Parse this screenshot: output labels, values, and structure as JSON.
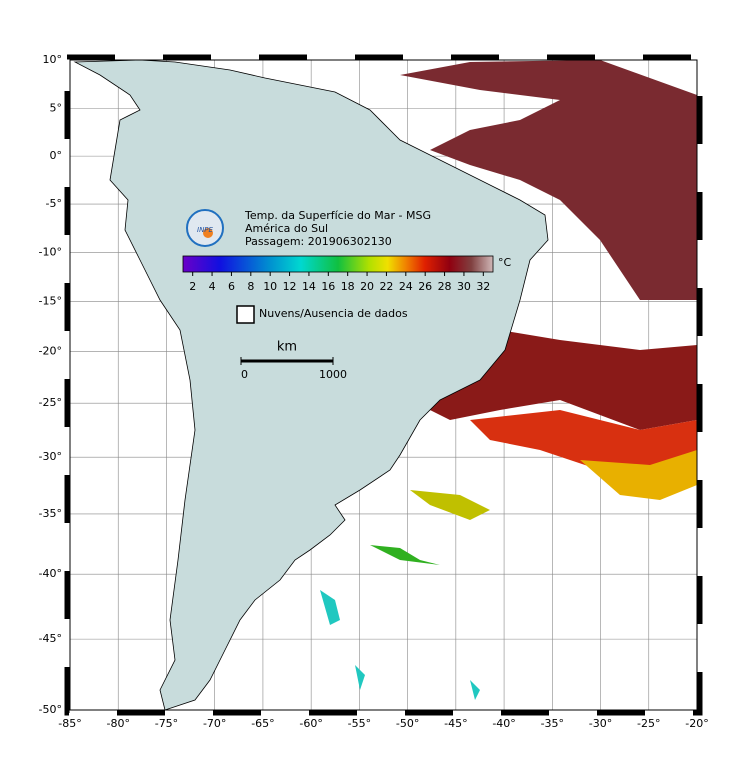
{
  "map": {
    "title_lines": [
      "Temp. da Superfície do Mar - MSG",
      "América do Sul",
      "Passagem: 201906302130"
    ],
    "logo": "INPE",
    "xlim": [
      -85,
      -20
    ],
    "ylim": [
      -50,
      10
    ],
    "xticks": [
      {
        "value": -85,
        "label": "-85°"
      },
      {
        "value": -80,
        "label": "-80°"
      },
      {
        "value": -75,
        "label": "-75°"
      },
      {
        "value": -70,
        "label": "-70°"
      },
      {
        "value": -65,
        "label": "-65°"
      },
      {
        "value": -60,
        "label": "-60°"
      },
      {
        "value": -55,
        "label": "-55°"
      },
      {
        "value": -50,
        "label": "-50°"
      },
      {
        "value": -45,
        "label": "-45°"
      },
      {
        "value": -40,
        "label": "-40°"
      },
      {
        "value": -35,
        "label": "-35°"
      },
      {
        "value": -30,
        "label": "-30°"
      },
      {
        "value": -25,
        "label": "-25°"
      },
      {
        "value": -20,
        "label": "-20°"
      }
    ],
    "yticks": [
      {
        "value": 10,
        "label": "10°"
      },
      {
        "value": 5,
        "label": "5°"
      },
      {
        "value": 0,
        "label": "0°"
      },
      {
        "value": -5,
        "label": "-5°"
      },
      {
        "value": -10,
        "label": "-10°"
      },
      {
        "value": -15,
        "label": "-15°"
      },
      {
        "value": -20,
        "label": "-20°"
      },
      {
        "value": -25,
        "label": "-25°"
      },
      {
        "value": -30,
        "label": "-30°"
      },
      {
        "value": -35,
        "label": "-35°"
      },
      {
        "value": -40,
        "label": "-40°"
      },
      {
        "value": -45,
        "label": "-45°"
      },
      {
        "value": -50,
        "label": "-50°"
      }
    ],
    "colorbar": {
      "unit": "°C",
      "lim": [
        1,
        33
      ],
      "ticks": [
        2,
        4,
        6,
        8,
        10,
        12,
        14,
        16,
        18,
        20,
        22,
        24,
        26,
        28,
        30,
        32
      ]
    },
    "legend": "Nuvens/Ausencia de dados",
    "scale_bar": {
      "unit": "km",
      "ticks": [
        0,
        1000
      ]
    }
  }
}
